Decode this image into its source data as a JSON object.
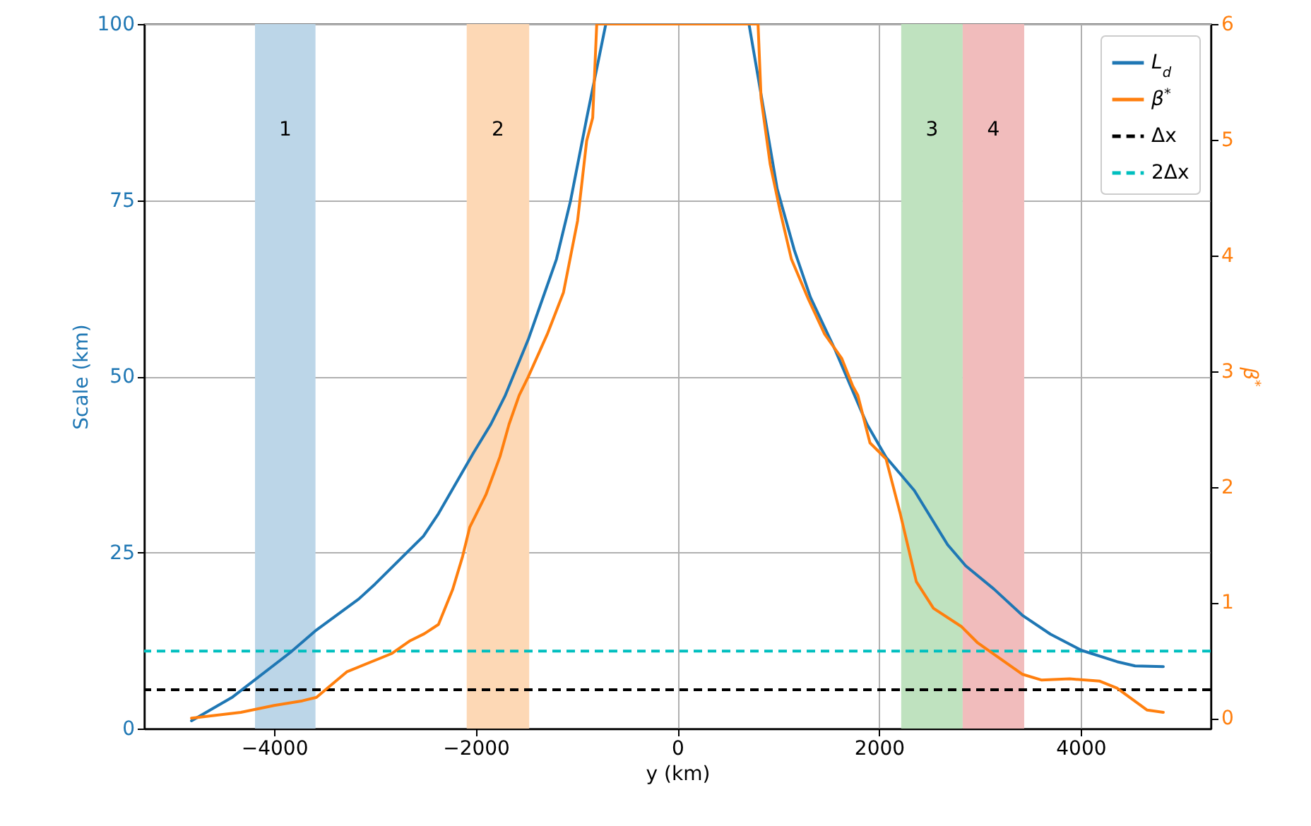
{
  "chart_data": {
    "type": "line",
    "xlabel": "y (km)",
    "ylabel": "Scale (km)",
    "y2label": "β$^{*}$",
    "xlim": [
      -5290,
      5290
    ],
    "xticks": [
      -4000,
      -2000,
      0,
      2000,
      4000
    ],
    "ylim": [
      0,
      100
    ],
    "yticks": [
      0,
      25,
      50,
      75,
      100
    ],
    "y2lim": [
      -0.09,
      6
    ],
    "y2ticks": [
      0,
      1,
      2,
      3,
      4,
      5,
      6
    ],
    "grid": true,
    "legend": "top right",
    "line_style": "solid",
    "series": [
      {
        "name": "L$_{d}$",
        "color": "#1f77b4",
        "x": [
          -4820,
          -4420,
          -3840,
          -3580,
          -3160,
          -3000,
          -2520,
          -2370,
          -2020,
          -1850,
          -1710,
          -1480,
          -1200,
          -1060,
          -900,
          -710,
          710,
          830,
          990,
          1160,
          1320,
          1560,
          1880,
          2070,
          2350,
          2680,
          2860,
          3140,
          3420,
          3700,
          4010,
          4360,
          4540,
          4820
        ],
        "values": [
          1.1,
          4.4,
          10.8,
          14.0,
          18.4,
          20.5,
          27.3,
          30.5,
          39.2,
          43.2,
          47.2,
          55.2,
          66.6,
          74.9,
          86.6,
          100,
          100,
          90.0,
          76.6,
          67.9,
          61.2,
          53.9,
          43.2,
          38.5,
          33.8,
          26.1,
          23.1,
          19.8,
          16.1,
          13.4,
          11.1,
          9.5,
          8.9,
          8.8
        ]
      },
      {
        "name": "β$^{*}$",
        "color": "#ff7f0e",
        "axis": "y2",
        "x": [
          -4820,
          -4330,
          -4000,
          -3720,
          -3580,
          -3280,
          -2830,
          -2650,
          -2510,
          -2370,
          -2230,
          -2130,
          -2060,
          -1900,
          -1760,
          -1670,
          -1570,
          -1480,
          -1290,
          -1130,
          -990,
          -900,
          -840,
          -800,
          800,
          830,
          920,
          1020,
          1130,
          1300,
          1460,
          1630,
          1740,
          1790,
          1910,
          2070,
          2210,
          2370,
          2540,
          2820,
          2980,
          3420,
          3610,
          3890,
          4190,
          4360,
          4660,
          4820
        ],
        "values": [
          0.0,
          0.05,
          0.11,
          0.15,
          0.18,
          0.4,
          0.56,
          0.67,
          0.73,
          0.81,
          1.11,
          1.4,
          1.65,
          1.93,
          2.26,
          2.54,
          2.79,
          2.95,
          3.32,
          3.68,
          4.3,
          4.99,
          5.19,
          6.0,
          6.0,
          5.36,
          4.79,
          4.38,
          3.97,
          3.62,
          3.32,
          3.11,
          2.87,
          2.79,
          2.38,
          2.24,
          1.77,
          1.18,
          0.95,
          0.79,
          0.65,
          0.38,
          0.33,
          0.34,
          0.32,
          0.26,
          0.07,
          0.05
        ]
      }
    ],
    "ref_lines": [
      {
        "axis": "y",
        "value": 5.5,
        "label": "Δx",
        "color": "#000000",
        "line_style": "dashed"
      },
      {
        "axis": "y",
        "value": 11,
        "label": "2Δx",
        "color": "#00bfbf",
        "line_style": "dashed"
      }
    ],
    "bands": [
      {
        "axis": "x",
        "from": -4190,
        "to": -3590,
        "label": "1",
        "color": "#bcd6e8"
      },
      {
        "axis": "x",
        "from": -2090,
        "to": -1470,
        "label": "2",
        "color": "#fdd8b5"
      },
      {
        "axis": "x",
        "from": 2220,
        "to": 2830,
        "label": "3",
        "color": "#bfe2bf"
      },
      {
        "axis": "x",
        "from": 2830,
        "to": 3440,
        "label": "4",
        "color": "#f1bcbc"
      }
    ]
  }
}
